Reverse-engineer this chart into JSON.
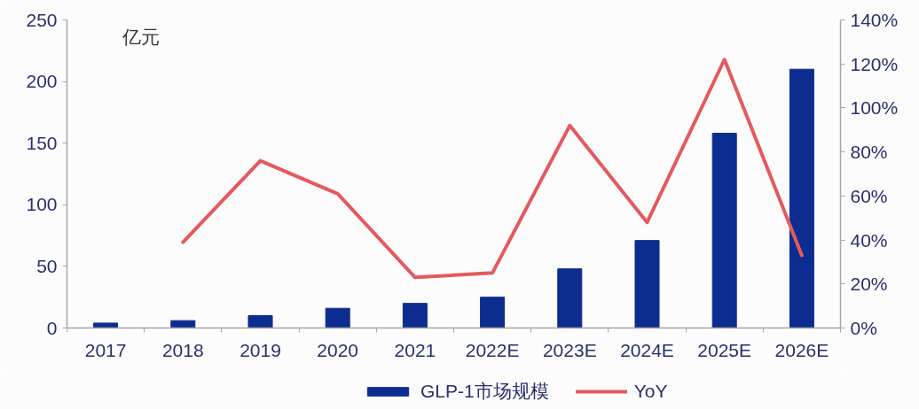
{
  "chart_data": {
    "type": "bar",
    "categories": [
      "2017",
      "2018",
      "2019",
      "2020",
      "2021",
      "2022E",
      "2023E",
      "2024E",
      "2025E",
      "2026E"
    ],
    "ylabel": "亿元",
    "series": [
      {
        "name": "GLP-1市场规模",
        "color": "#0d2c8f",
        "values": [
          4,
          6,
          10,
          16,
          20,
          25,
          48,
          71,
          158,
          210
        ]
      },
      {
        "name": "YoY",
        "type": "line",
        "axis": "y2",
        "color": "#e35a5e",
        "values": [
          null,
          39,
          76,
          61,
          23,
          25,
          92,
          48,
          122,
          33
        ]
      }
    ],
    "ylim": [
      0,
      250
    ],
    "yticks": [
      0,
      50,
      100,
      150,
      200,
      250
    ],
    "y2lim": [
      0,
      140
    ],
    "y2ticks": [
      {
        "value": 0,
        "label": "0%"
      },
      {
        "value": 20,
        "label": "20%"
      },
      {
        "value": 40,
        "label": "40%"
      },
      {
        "value": 60,
        "label": "60%"
      },
      {
        "value": 80,
        "label": "80%"
      },
      {
        "value": 100,
        "label": "100%"
      },
      {
        "value": 120,
        "label": "120%"
      },
      {
        "value": 140,
        "label": "140%"
      }
    ],
    "legend": "bottom"
  }
}
